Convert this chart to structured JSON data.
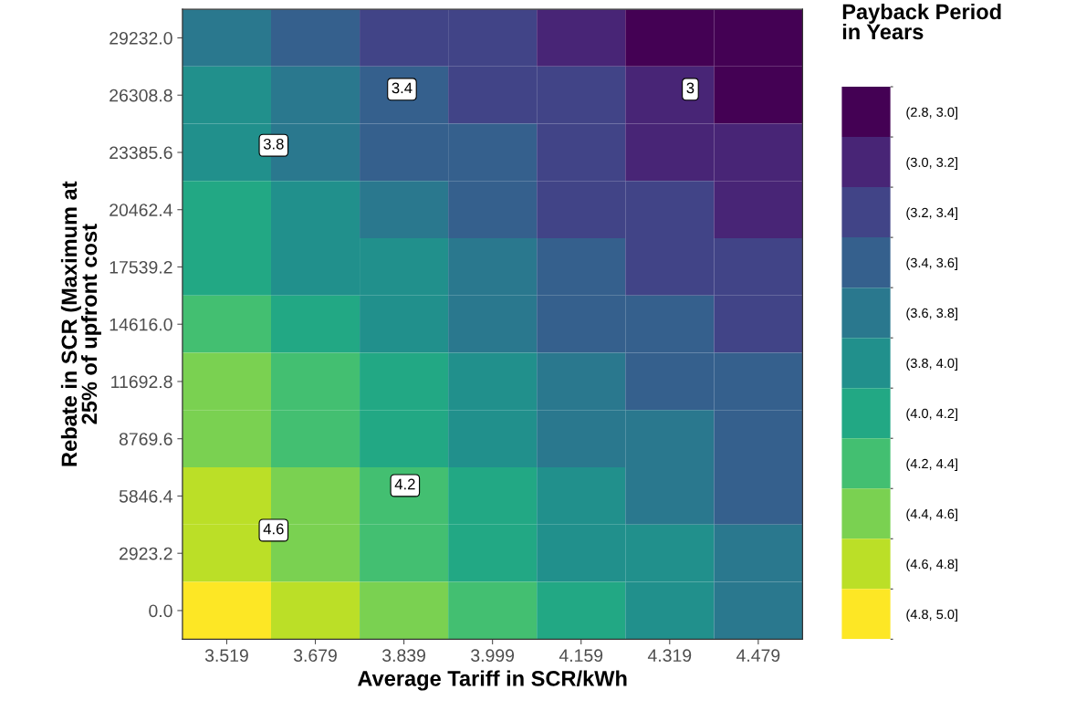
{
  "chart_data": {
    "type": "heatmap",
    "xlabel": "Average Tariff in SCR/kWh",
    "ylabel": "Rebate in SCR (Maximum at\n25% of upfront cost",
    "legend_title": "Payback Period\nin Years",
    "x": [
      3.519,
      3.679,
      3.839,
      3.999,
      4.159,
      4.319,
      4.479
    ],
    "y": [
      29232.0,
      26308.8,
      23385.6,
      20462.4,
      17539.2,
      14616.0,
      11692.8,
      8769.6,
      5846.4,
      2923.2,
      0.0
    ],
    "cells": [
      [
        3.71,
        3.53,
        3.38,
        3.23,
        3.1,
        2.98,
        2.86
      ],
      [
        3.83,
        3.65,
        3.48,
        3.33,
        3.2,
        3.07,
        2.95
      ],
      [
        3.94,
        3.76,
        3.59,
        3.44,
        3.3,
        3.16,
        3.04
      ],
      [
        4.06,
        3.87,
        3.7,
        3.54,
        3.39,
        3.26,
        3.14
      ],
      [
        4.18,
        3.98,
        3.8,
        3.64,
        3.49,
        3.35,
        3.23
      ],
      [
        4.29,
        4.09,
        3.91,
        3.74,
        3.59,
        3.45,
        3.32
      ],
      [
        4.41,
        4.2,
        4.02,
        3.84,
        3.69,
        3.54,
        3.41
      ],
      [
        4.53,
        4.32,
        4.12,
        3.95,
        3.78,
        3.64,
        3.5
      ],
      [
        4.65,
        4.43,
        4.23,
        4.05,
        3.88,
        3.73,
        3.59
      ],
      [
        4.76,
        4.54,
        4.34,
        4.15,
        3.98,
        3.82,
        3.68
      ],
      [
        4.88,
        4.65,
        4.44,
        4.25,
        4.08,
        3.92,
        3.77
      ]
    ],
    "clim": [
      2.8,
      5.0
    ],
    "cticks": [
      {
        "value": 2.9,
        "label": "(2.8, 3.0]"
      },
      {
        "value": 3.1,
        "label": "(3.0, 3.2]"
      },
      {
        "value": 3.3,
        "label": "(3.2, 3.4]"
      },
      {
        "value": 3.5,
        "label": "(3.4, 3.6]"
      },
      {
        "value": 3.7,
        "label": "(3.6, 3.8]"
      },
      {
        "value": 3.9,
        "label": "(3.8, 4.0]"
      },
      {
        "value": 4.1,
        "label": "(4.0, 4.2]"
      },
      {
        "value": 4.3,
        "label": "(4.2, 4.4]"
      },
      {
        "value": 4.5,
        "label": "(4.4, 4.6]"
      },
      {
        "value": 4.7,
        "label": "(4.6, 4.8]"
      },
      {
        "value": 4.9,
        "label": "(4.8, 5.0]"
      }
    ],
    "colors": [
      "#440154",
      "#482576",
      "#414487",
      "#35608d",
      "#2a788e",
      "#21908c",
      "#22a884",
      "#43bf71",
      "#7ad151",
      "#bbdf27",
      "#fde725"
    ],
    "annotations": [
      "3",
      "3.4",
      "3.8",
      "4.2",
      "4.6"
    ],
    "xlim": [
      3.439,
      4.559
    ],
    "ylim": [
      -1461.6,
      30693.6
    ],
    "xticks": [
      3.519,
      3.679,
      3.839,
      3.999,
      4.159,
      4.319,
      4.479
    ],
    "yticks": [
      {
        "value": 0,
        "label": "0.0"
      },
      2923.2,
      5846.4,
      8769.6,
      11692.8,
      {
        "value": 14616,
        "label": "14616.0"
      },
      17539.2,
      20462.4,
      23385.6,
      26308.8,
      {
        "value": 29232,
        "label": "29232.0"
      }
    ]
  }
}
